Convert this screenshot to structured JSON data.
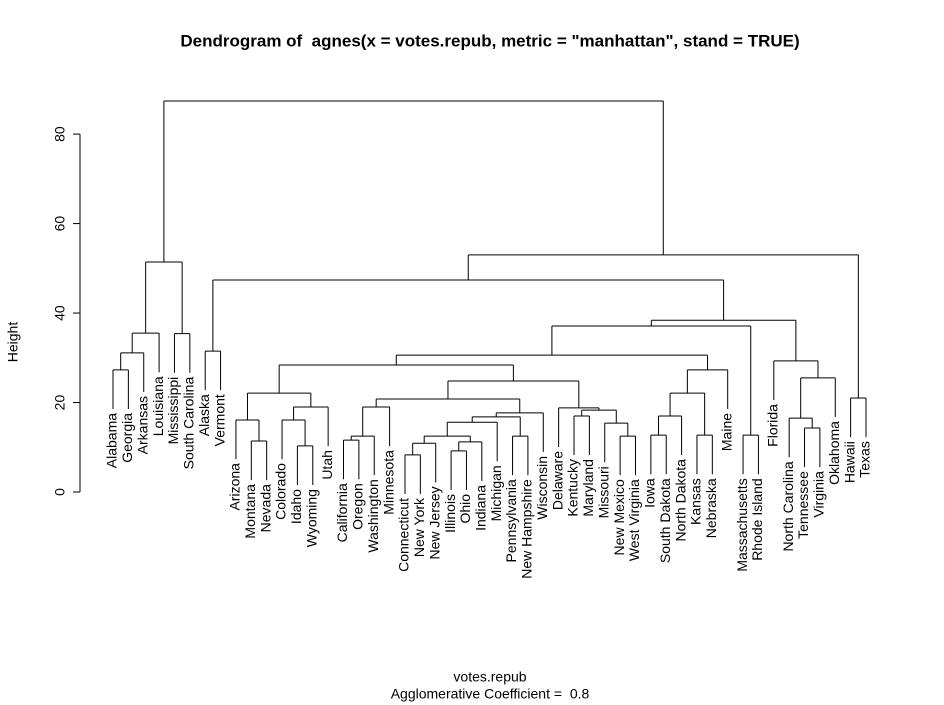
{
  "chart_data": {
    "type": "dendrogram",
    "title": "Dendrogram of  agnes(x = votes.repub, metric = \"manhattan\", stand = TRUE)",
    "x_label": "votes.repub",
    "subtitle": "Agglomerative Coefficient =  0.8",
    "y_label": "Height",
    "ylim": [
      0,
      87.4
    ],
    "yticks": [
      0,
      20,
      40,
      60,
      80
    ],
    "tree": {
      "height": 87.4,
      "children": [
        {
          "height": 51.4,
          "children": [
            {
              "height": 35.5,
              "children": [
                {
                  "height": 31.1,
                  "children": [
                    {
                      "height": 27.3,
                      "children": [
                        "Alabama",
                        "Georgia"
                      ]
                    },
                    "Arkansas"
                  ]
                },
                "Louisiana"
              ]
            },
            {
              "height": 35.4,
              "children": [
                "Mississippi",
                "South Carolina"
              ]
            }
          ]
        },
        {
          "height": 53.0,
          "children": [
            {
              "height": 47.4,
              "children": [
                {
                  "height": 31.5,
                  "children": [
                    "Alaska",
                    "Vermont"
                  ]
                },
                {
                  "height": 38.4,
                  "children": [
                    {
                      "height": 37.1,
                      "children": [
                        {
                          "height": 30.6,
                          "children": [
                            {
                              "height": 28.4,
                              "children": [
                                {
                                  "height": 22.1,
                                  "children": [
                                    {
                                      "height": 16.1,
                                      "children": [
                                        "Arizona",
                                        {
                                          "height": 11.4,
                                          "children": [
                                            "Montana",
                                            "Nevada"
                                          ]
                                        }
                                      ]
                                    },
                                    {
                                      "height": 19.0,
                                      "children": [
                                        {
                                          "height": 16.1,
                                          "children": [
                                            "Colorado",
                                            {
                                              "height": 10.3,
                                              "children": [
                                                "Idaho",
                                                "Wyoming"
                                              ]
                                            }
                                          ]
                                        },
                                        "Utah"
                                      ]
                                    }
                                  ]
                                },
                                {
                                  "height": 24.8,
                                  "children": [
                                    {
                                      "height": 20.8,
                                      "children": [
                                        {
                                          "height": 19.0,
                                          "children": [
                                            {
                                              "height": 12.5,
                                              "children": [
                                                {
                                                  "height": 11.6,
                                                  "children": [
                                                    "California",
                                                    "Oregon"
                                                  ]
                                                },
                                                "Washington"
                                              ]
                                            },
                                            "Minnesota"
                                          ]
                                        },
                                        {
                                          "height": 17.7,
                                          "children": [
                                            {
                                              "height": 16.8,
                                              "children": [
                                                {
                                                  "height": 15.6,
                                                  "children": [
                                                    {
                                                      "height": 12.5,
                                                      "children": [
                                                        {
                                                          "height": 10.9,
                                                          "children": [
                                                            {
                                                              "height": 8.3,
                                                              "children": [
                                                                "Connecticut",
                                                                "New York"
                                                              ]
                                                            },
                                                            "New Jersey"
                                                          ]
                                                        },
                                                        {
                                                          "height": 11.2,
                                                          "children": [
                                                            {
                                                              "height": 9.2,
                                                              "children": [
                                                                "Illinois",
                                                                "Ohio"
                                                              ]
                                                            },
                                                            "Indiana"
                                                          ]
                                                        }
                                                      ]
                                                    },
                                                    "Michigan"
                                                  ]
                                                },
                                                {
                                                  "height": 12.5,
                                                  "children": [
                                                    "Pennsylvania",
                                                    "New Hampshire"
                                                  ]
                                                }
                                              ]
                                            },
                                            "Wisconsin"
                                          ]
                                        }
                                      ]
                                    },
                                    {
                                      "height": 18.8,
                                      "children": [
                                        "Delaware",
                                        {
                                          "height": 18.3,
                                          "children": [
                                            {
                                              "height": 17.0,
                                              "children": [
                                                "Kentucky",
                                                "Maryland"
                                              ]
                                            },
                                            {
                                              "height": 15.4,
                                              "children": [
                                                "Missouri",
                                                {
                                                  "height": 12.5,
                                                  "children": [
                                                    "New Mexico",
                                                    "West Virginia"
                                                  ]
                                                }
                                              ]
                                            }
                                          ]
                                        }
                                      ]
                                    }
                                  ]
                                }
                              ]
                            },
                            {
                              "height": 27.3,
                              "children": [
                                {
                                  "height": 22.1,
                                  "children": [
                                    {
                                      "height": 17.0,
                                      "children": [
                                        {
                                          "height": 12.7,
                                          "children": [
                                            "Iowa",
                                            "South Dakota"
                                          ]
                                        },
                                        "North Dakota"
                                      ]
                                    },
                                    {
                                      "height": 12.7,
                                      "children": [
                                        "Kansas",
                                        "Nebraska"
                                      ]
                                    }
                                  ]
                                },
                                "Maine"
                              ]
                            }
                          ]
                        },
                        {
                          "height": 12.7,
                          "children": [
                            "Massachusetts",
                            "Rhode Island"
                          ]
                        }
                      ]
                    },
                    {
                      "height": 29.3,
                      "children": [
                        "Florida",
                        {
                          "height": 25.5,
                          "children": [
                            {
                              "height": 16.5,
                              "children": [
                                "North Carolina",
                                {
                                  "height": 14.3,
                                  "children": [
                                    "Tennessee",
                                    "Virginia"
                                  ]
                                }
                              ]
                            },
                            "Oklahoma"
                          ]
                        }
                      ]
                    }
                  ]
                }
              ]
            },
            {
              "height": 21.0,
              "children": [
                "Hawaii",
                "Texas"
              ]
            }
          ]
        }
      ]
    }
  }
}
